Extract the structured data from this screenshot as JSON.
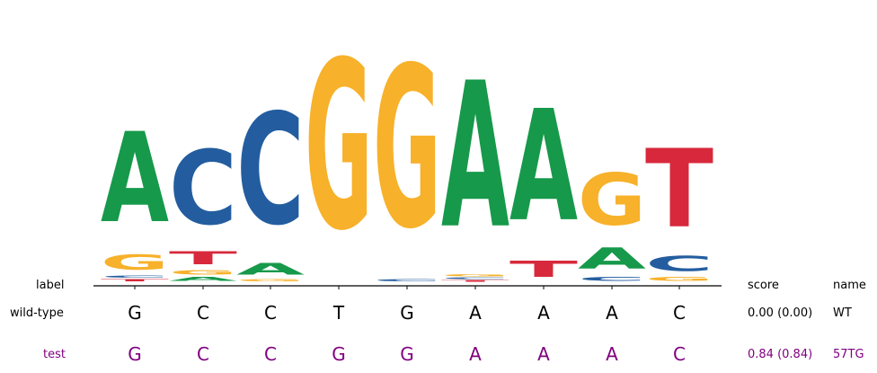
{
  "colors": {
    "A": "#16994a",
    "C": "#235d9f",
    "G": "#f7b12a",
    "T": "#d7293b",
    "test_text": "#800080",
    "axis": "#000000"
  },
  "logo": {
    "positions": [
      {
        "stack": [
          {
            "base": "T",
            "bits": 0.03
          },
          {
            "base": "C",
            "bits": 0.03
          },
          {
            "base": "G",
            "bits": 0.19
          },
          {
            "base": "A",
            "bits": 1.15
          }
        ]
      },
      {
        "stack": [
          {
            "base": "A",
            "bits": 0.05
          },
          {
            "base": "G",
            "bits": 0.06
          },
          {
            "base": "T",
            "bits": 0.16
          },
          {
            "base": "C",
            "bits": 0.95
          }
        ]
      },
      {
        "stack": [
          {
            "base": "G",
            "bits": 0.03
          },
          {
            "base": "A",
            "bits": 0.15
          },
          {
            "base": "C",
            "bits": 1.42
          }
        ]
      },
      {
        "stack": [
          {
            "base": "G",
            "bits": 2.15
          }
        ]
      },
      {
        "stack": [
          {
            "base": "C",
            "bits": 0.03
          },
          {
            "base": "G",
            "bits": 2.06
          }
        ]
      },
      {
        "stack": [
          {
            "base": "T",
            "bits": 0.02
          },
          {
            "base": "C",
            "bits": 0.02
          },
          {
            "base": "G",
            "bits": 0.03
          },
          {
            "base": "A",
            "bits": 1.86
          }
        ]
      },
      {
        "stack": [
          {
            "base": "T",
            "bits": 0.21
          },
          {
            "base": "A",
            "bits": 1.42
          }
        ]
      },
      {
        "stack": [
          {
            "base": "C",
            "bits": 0.05
          },
          {
            "base": "A",
            "bits": 0.27
          },
          {
            "base": "G",
            "bits": 0.66
          }
        ]
      },
      {
        "stack": [
          {
            "base": "G",
            "bits": 0.05
          },
          {
            "base": "C",
            "bits": 0.19
          },
          {
            "base": "T",
            "bits": 1.0
          }
        ]
      }
    ]
  },
  "table": {
    "label_header": "label",
    "score_header": "score",
    "name_header": "name",
    "rows": [
      {
        "label": "wild-type",
        "seq": [
          "G",
          "C",
          "C",
          "T",
          "G",
          "A",
          "A",
          "A",
          "C"
        ],
        "score": "0.00 (0.00)",
        "name": "WT",
        "color": "#000000"
      },
      {
        "label": "test",
        "seq": [
          "G",
          "C",
          "C",
          "G",
          "G",
          "A",
          "A",
          "A",
          "C"
        ],
        "score": "0.84 (0.84)",
        "name": "57TG",
        "color": "#800080"
      }
    ]
  }
}
